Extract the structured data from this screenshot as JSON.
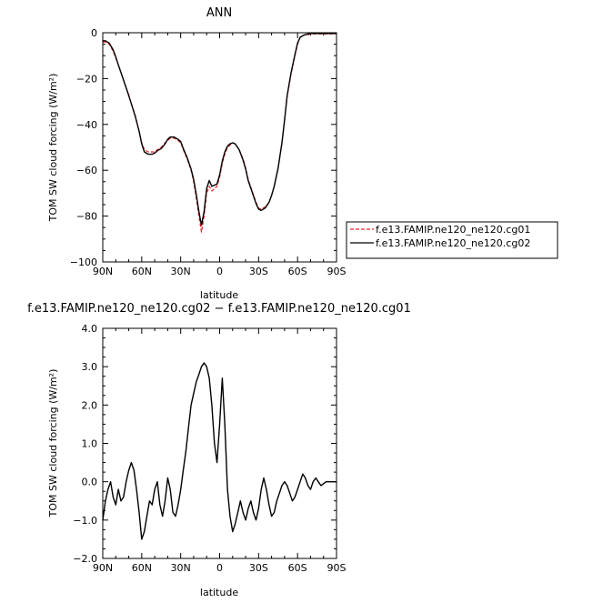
{
  "chart_data": [
    {
      "type": "line",
      "title": "ANN",
      "xlabel": "latitude",
      "ylabel": "TOM SW cloud forcing (W/m²)",
      "xlim": [
        90,
        -90
      ],
      "ylim": [
        -100,
        0
      ],
      "x_ticks": [
        90,
        60,
        30,
        0,
        -30,
        -60,
        -90
      ],
      "x_tick_labels": [
        "90N",
        "60N",
        "30N",
        "0",
        "30S",
        "60S",
        "90S"
      ],
      "y_ticks": [
        0,
        -20,
        -40,
        -60,
        -80,
        -100
      ],
      "y_tick_labels": [
        "0",
        "−20",
        "−40",
        "−60",
        "−80",
        "−100"
      ],
      "legend": "right",
      "x": [
        90,
        88,
        85,
        82,
        80,
        78,
        75,
        72,
        70,
        68,
        65,
        62,
        60,
        58,
        55,
        52,
        50,
        48,
        45,
        42,
        40,
        38,
        35,
        32,
        30,
        28,
        25,
        22,
        20,
        18,
        16,
        14,
        12,
        10,
        8,
        6,
        4,
        2,
        0,
        -2,
        -4,
        -6,
        -8,
        -10,
        -12,
        -15,
        -18,
        -20,
        -22,
        -25,
        -28,
        -30,
        -32,
        -35,
        -38,
        -40,
        -42,
        -45,
        -48,
        -50,
        -52,
        -55,
        -58,
        -60,
        -62,
        -65,
        -68,
        -70,
        -72,
        -75,
        -78,
        -80,
        -82,
        -85,
        -88,
        -90
      ],
      "series": [
        {
          "name": "f.e13.FAMIP.ne120_ne120.cg01",
          "color": "#e8262a",
          "dash": true,
          "values": [
            -4,
            -4,
            -5,
            -8,
            -11,
            -14,
            -19,
            -24,
            -27,
            -31,
            -36,
            -43,
            -48,
            -51,
            -52,
            -52,
            -52,
            -51,
            -50,
            -48,
            -47,
            -46,
            -46,
            -47,
            -48,
            -51,
            -55,
            -60,
            -65,
            -72,
            -80,
            -87,
            -80,
            -70,
            -67,
            -69,
            -68,
            -67,
            -63,
            -57,
            -53,
            -50,
            -49,
            -48,
            -48.5,
            -51,
            -55,
            -59,
            -64,
            -69,
            -74,
            -76.5,
            -77,
            -76,
            -74,
            -71,
            -67,
            -59,
            -48,
            -38,
            -28,
            -18,
            -10,
            -5,
            -2,
            -1,
            -1,
            -0.5,
            -0.5,
            -0.5,
            -0.5,
            -0.5,
            -0.5,
            -0.5,
            -0.5,
            -0.5
          ]
        },
        {
          "name": "f.e13.FAMIP.ne120_ne120.cg02",
          "color": "#000000",
          "dash": false,
          "values": [
            -3.5,
            -3.5,
            -4.5,
            -7.5,
            -10.5,
            -14,
            -19,
            -24,
            -27.5,
            -31,
            -36.5,
            -43,
            -48.5,
            -52,
            -53,
            -53,
            -52.5,
            -51.5,
            -50.5,
            -48.5,
            -46.5,
            -45.5,
            -45.5,
            -46.5,
            -47.5,
            -50.5,
            -54.5,
            -59.5,
            -64,
            -70.5,
            -78,
            -84,
            -78,
            -68,
            -64.5,
            -67,
            -66.5,
            -66,
            -62,
            -56,
            -52,
            -49.5,
            -48.5,
            -48,
            -48.5,
            -51,
            -55.5,
            -59.5,
            -64.5,
            -69.5,
            -74.5,
            -77,
            -77.5,
            -76.5,
            -74,
            -71,
            -67,
            -59,
            -48,
            -38,
            -27.5,
            -17.5,
            -9.5,
            -4.5,
            -2,
            -1,
            -0.5,
            -0.3,
            -0.3,
            -0.3,
            -0.3,
            -0.3,
            -0.3,
            -0.3,
            -0.3,
            -0.3
          ]
        }
      ]
    },
    {
      "type": "line",
      "title": "f.e13.FAMIP.ne120_ne120.cg02 − f.e13.FAMIP.ne120_ne120.cg01",
      "xlabel": "latitude",
      "ylabel": "TOM SW cloud forcing (W/m²)",
      "xlim": [
        90,
        -90
      ],
      "ylim": [
        -2,
        4
      ],
      "x_ticks": [
        90,
        60,
        30,
        0,
        -30,
        -60,
        -90
      ],
      "x_tick_labels": [
        "90N",
        "60N",
        "30N",
        "0",
        "30S",
        "60S",
        "90S"
      ],
      "y_ticks": [
        4,
        3,
        2,
        1,
        0,
        -1,
        -2
      ],
      "y_tick_labels": [
        "4.0",
        "3.0",
        "2.0",
        "1.0",
        "0.0",
        "−1.0",
        "−2.0"
      ],
      "x": [
        90,
        88,
        86,
        84,
        82,
        80,
        78,
        76,
        74,
        72,
        70,
        68,
        66,
        64,
        62,
        60,
        58,
        56,
        54,
        52,
        50,
        48,
        46,
        44,
        42,
        40,
        38,
        36,
        34,
        32,
        30,
        28,
        26,
        24,
        22,
        20,
        18,
        16,
        14,
        12,
        10,
        8,
        6,
        4,
        2,
        0,
        -2,
        -4,
        -6,
        -8,
        -10,
        -12,
        -14,
        -16,
        -18,
        -20,
        -22,
        -24,
        -26,
        -28,
        -30,
        -32,
        -34,
        -36,
        -38,
        -40,
        -42,
        -44,
        -46,
        -48,
        -50,
        -52,
        -54,
        -56,
        -58,
        -60,
        -62,
        -64,
        -66,
        -68,
        -70,
        -72,
        -74,
        -76,
        -78,
        -80,
        -82,
        -84,
        -86,
        -88,
        -90
      ],
      "series": [
        {
          "name": "",
          "color": "#000000",
          "dash": false,
          "values": [
            -1.0,
            -0.5,
            -0.2,
            0.0,
            -0.4,
            -0.6,
            -0.2,
            -0.5,
            -0.4,
            0.0,
            0.3,
            0.5,
            0.3,
            -0.2,
            -0.8,
            -1.5,
            -1.3,
            -0.9,
            -0.5,
            -0.6,
            -0.2,
            0.0,
            -0.6,
            -0.9,
            -0.5,
            0.1,
            -0.2,
            -0.8,
            -0.9,
            -0.6,
            -0.2,
            0.3,
            0.8,
            1.4,
            2.0,
            2.3,
            2.6,
            2.8,
            3.0,
            3.1,
            3.0,
            2.7,
            2.0,
            1.0,
            0.5,
            1.5,
            2.7,
            1.5,
            -0.2,
            -0.9,
            -1.3,
            -1.1,
            -0.8,
            -0.5,
            -0.8,
            -1.0,
            -0.7,
            -0.5,
            -0.8,
            -1.0,
            -0.7,
            -0.2,
            0.1,
            -0.2,
            -0.6,
            -0.9,
            -0.8,
            -0.5,
            -0.3,
            -0.1,
            0.0,
            -0.1,
            -0.3,
            -0.5,
            -0.4,
            -0.2,
            0.0,
            0.2,
            0.1,
            -0.1,
            -0.2,
            0.0,
            0.1,
            0.0,
            -0.1,
            -0.05,
            0.0,
            0.0,
            0.0,
            0.0,
            0.0
          ]
        }
      ]
    }
  ]
}
